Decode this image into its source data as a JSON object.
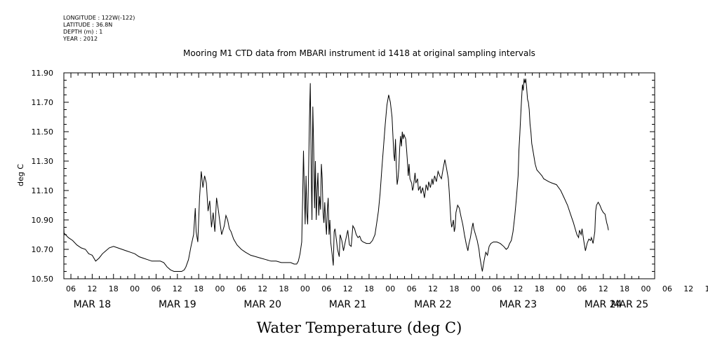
{
  "meta": {
    "longitude": "LONGITUDE : 122W(-122)",
    "latitude": "LATITUDE : 36.8N",
    "depth": "DEPTH (m) : 1",
    "year": "YEAR : 2012"
  },
  "chart_data": {
    "type": "line",
    "title": "Mooring M1 CTD data from MBARI instrument id 1418 at original sampling intervals",
    "xlabel": "Water Temperature (deg C)",
    "ylabel": "deg C",
    "ylim": [
      10.5,
      11.9
    ],
    "xlim": [
      0,
      7
    ],
    "x_unit": "days since 2012-03-18 00:00",
    "y_ticks": [
      10.5,
      10.7,
      10.9,
      11.1,
      11.3,
      11.5,
      11.7,
      11.9
    ],
    "y_tick_labels": [
      "10.50",
      "10.70",
      "10.90",
      "11.10",
      "11.30",
      "11.50",
      "11.70",
      "11.90"
    ],
    "x_hour_labels": [
      "06",
      "12",
      "18",
      "00",
      "06",
      "12",
      "18",
      "00",
      "06",
      "12",
      "18",
      "00",
      "06",
      "12",
      "18",
      "00",
      "06",
      "12",
      "18",
      "00",
      "06",
      "12",
      "18",
      "00",
      "06",
      "12",
      "18",
      "00",
      "06",
      "12",
      "18",
      "00"
    ],
    "x_month_labels": [
      "MAR 18",
      "MAR 19",
      "MAR 20",
      "MAR 21",
      "MAR 22",
      "MAR 23",
      "MAR 24",
      "MAR 25"
    ],
    "grid": false,
    "series": [
      {
        "name": "",
        "points": [
          [
            -0.1,
            11.2
          ],
          [
            -0.07,
            11.17
          ],
          [
            -0.05,
            11.1
          ],
          [
            -0.02,
            11.03
          ],
          [
            0.0,
            10.99
          ],
          [
            0.04,
            10.94
          ],
          [
            0.08,
            10.89
          ],
          [
            0.12,
            10.85
          ],
          [
            0.17,
            10.81
          ],
          [
            0.22,
            10.78
          ],
          [
            0.27,
            10.76
          ],
          [
            0.32,
            10.73
          ],
          [
            0.37,
            10.71
          ],
          [
            0.42,
            10.7
          ],
          [
            0.46,
            10.67
          ],
          [
            0.5,
            10.66
          ],
          [
            0.54,
            10.62
          ],
          [
            0.58,
            10.64
          ],
          [
            0.62,
            10.67
          ],
          [
            0.66,
            10.69
          ],
          [
            0.7,
            10.71
          ],
          [
            0.75,
            10.72
          ],
          [
            0.8,
            10.71
          ],
          [
            0.85,
            10.7
          ],
          [
            0.9,
            10.69
          ],
          [
            0.95,
            10.68
          ],
          [
            1.0,
            10.67
          ],
          [
            1.05,
            10.65
          ],
          [
            1.1,
            10.64
          ],
          [
            1.15,
            10.63
          ],
          [
            1.2,
            10.62
          ],
          [
            1.25,
            10.62
          ],
          [
            1.3,
            10.62
          ],
          [
            1.34,
            10.61
          ],
          [
            1.38,
            10.58
          ],
          [
            1.42,
            10.56
          ],
          [
            1.46,
            10.55
          ],
          [
            1.5,
            10.55
          ],
          [
            1.55,
            10.55
          ],
          [
            1.58,
            10.56
          ],
          [
            1.6,
            10.58
          ],
          [
            1.63,
            10.63
          ],
          [
            1.66,
            10.72
          ],
          [
            1.69,
            10.8
          ],
          [
            1.71,
            10.98
          ],
          [
            1.72,
            10.82
          ],
          [
            1.74,
            10.75
          ],
          [
            1.76,
            11.05
          ],
          [
            1.78,
            11.23
          ],
          [
            1.8,
            11.12
          ],
          [
            1.82,
            11.2
          ],
          [
            1.84,
            11.15
          ],
          [
            1.86,
            10.96
          ],
          [
            1.88,
            11.03
          ],
          [
            1.9,
            10.85
          ],
          [
            1.92,
            10.95
          ],
          [
            1.94,
            10.82
          ],
          [
            1.96,
            11.05
          ],
          [
            1.98,
            10.97
          ],
          [
            2.0,
            10.88
          ],
          [
            2.02,
            10.8
          ],
          [
            2.05,
            10.86
          ],
          [
            2.07,
            10.93
          ],
          [
            2.09,
            10.9
          ],
          [
            2.11,
            10.84
          ],
          [
            2.13,
            10.82
          ],
          [
            2.16,
            10.77
          ],
          [
            2.2,
            10.73
          ],
          [
            2.25,
            10.7
          ],
          [
            2.3,
            10.68
          ],
          [
            2.36,
            10.66
          ],
          [
            2.42,
            10.65
          ],
          [
            2.48,
            10.64
          ],
          [
            2.54,
            10.63
          ],
          [
            2.6,
            10.62
          ],
          [
            2.66,
            10.62
          ],
          [
            2.72,
            10.61
          ],
          [
            2.78,
            10.61
          ],
          [
            2.83,
            10.61
          ],
          [
            2.87,
            10.6
          ],
          [
            2.9,
            10.6
          ],
          [
            2.92,
            10.62
          ],
          [
            2.94,
            10.67
          ],
          [
            2.96,
            10.75
          ],
          [
            2.97,
            11.05
          ],
          [
            2.98,
            11.37
          ],
          [
            2.99,
            11.1
          ],
          [
            3.0,
            10.87
          ],
          [
            3.01,
            11.2
          ],
          [
            3.02,
            10.95
          ],
          [
            3.03,
            10.87
          ],
          [
            3.05,
            11.58
          ],
          [
            3.06,
            11.83
          ],
          [
            3.07,
            11.3
          ],
          [
            3.08,
            10.9
          ],
          [
            3.09,
            11.67
          ],
          [
            3.1,
            11.4
          ],
          [
            3.11,
            10.98
          ],
          [
            3.12,
            11.3
          ],
          [
            3.13,
            10.9
          ],
          [
            3.14,
            11.1
          ],
          [
            3.15,
            11.22
          ],
          [
            3.16,
            10.93
          ],
          [
            3.17,
            11.06
          ],
          [
            3.18,
            10.97
          ],
          [
            3.19,
            11.28
          ],
          [
            3.2,
            11.18
          ],
          [
            3.21,
            10.95
          ],
          [
            3.22,
            10.88
          ],
          [
            3.23,
            11.02
          ],
          [
            3.24,
            10.9
          ],
          [
            3.25,
            10.8
          ],
          [
            3.26,
            10.97
          ],
          [
            3.27,
            11.05
          ],
          [
            3.28,
            10.8
          ],
          [
            3.29,
            10.9
          ],
          [
            3.3,
            10.75
          ],
          [
            3.31,
            10.7
          ],
          [
            3.32,
            10.65
          ],
          [
            3.33,
            10.59
          ],
          [
            3.34,
            10.82
          ],
          [
            3.35,
            10.84
          ],
          [
            3.37,
            10.75
          ],
          [
            3.38,
            10.7
          ],
          [
            3.4,
            10.65
          ],
          [
            3.41,
            10.8
          ],
          [
            3.43,
            10.76
          ],
          [
            3.45,
            10.69
          ],
          [
            3.47,
            10.75
          ],
          [
            3.5,
            10.83
          ],
          [
            3.52,
            10.73
          ],
          [
            3.54,
            10.72
          ],
          [
            3.56,
            10.86
          ],
          [
            3.58,
            10.84
          ],
          [
            3.6,
            10.8
          ],
          [
            3.62,
            10.78
          ],
          [
            3.64,
            10.79
          ],
          [
            3.66,
            10.76
          ],
          [
            3.68,
            10.75
          ],
          [
            3.72,
            10.74
          ],
          [
            3.76,
            10.74
          ],
          [
            3.79,
            10.76
          ],
          [
            3.82,
            10.8
          ],
          [
            3.84,
            10.88
          ],
          [
            3.86,
            10.96
          ],
          [
            3.88,
            11.08
          ],
          [
            3.9,
            11.25
          ],
          [
            3.92,
            11.4
          ],
          [
            3.94,
            11.55
          ],
          [
            3.96,
            11.68
          ],
          [
            3.98,
            11.75
          ],
          [
            4.0,
            11.7
          ],
          [
            4.02,
            11.6
          ],
          [
            4.03,
            11.48
          ],
          [
            4.04,
            11.35
          ],
          [
            4.05,
            11.3
          ],
          [
            4.06,
            11.45
          ],
          [
            4.07,
            11.26
          ],
          [
            4.08,
            11.14
          ],
          [
            4.09,
            11.18
          ],
          [
            4.1,
            11.25
          ],
          [
            4.11,
            11.4
          ],
          [
            4.12,
            11.47
          ],
          [
            4.13,
            11.4
          ],
          [
            4.14,
            11.5
          ],
          [
            4.15,
            11.45
          ],
          [
            4.16,
            11.48
          ],
          [
            4.18,
            11.45
          ],
          [
            4.19,
            11.38
          ],
          [
            4.2,
            11.3
          ],
          [
            4.21,
            11.2
          ],
          [
            4.22,
            11.28
          ],
          [
            4.23,
            11.18
          ],
          [
            4.25,
            11.15
          ],
          [
            4.26,
            11.1
          ],
          [
            4.27,
            11.12
          ],
          [
            4.29,
            11.22
          ],
          [
            4.3,
            11.15
          ],
          [
            4.32,
            11.18
          ],
          [
            4.33,
            11.1
          ],
          [
            4.35,
            11.13
          ],
          [
            4.36,
            11.08
          ],
          [
            4.38,
            11.12
          ],
          [
            4.4,
            11.05
          ],
          [
            4.42,
            11.14
          ],
          [
            4.44,
            11.1
          ],
          [
            4.45,
            11.16
          ],
          [
            4.47,
            11.12
          ],
          [
            4.49,
            11.18
          ],
          [
            4.5,
            11.14
          ],
          [
            4.52,
            11.2
          ],
          [
            4.54,
            11.16
          ],
          [
            4.56,
            11.23
          ],
          [
            4.58,
            11.2
          ],
          [
            4.6,
            11.18
          ],
          [
            4.62,
            11.25
          ],
          [
            4.64,
            11.31
          ],
          [
            4.66,
            11.25
          ],
          [
            4.68,
            11.18
          ],
          [
            4.69,
            11.1
          ],
          [
            4.7,
            11.0
          ],
          [
            4.71,
            10.9
          ],
          [
            4.72,
            10.85
          ],
          [
            4.73,
            10.87
          ],
          [
            4.74,
            10.9
          ],
          [
            4.75,
            10.82
          ],
          [
            4.76,
            10.85
          ],
          [
            4.77,
            10.95
          ],
          [
            4.79,
            11.0
          ],
          [
            4.81,
            10.98
          ],
          [
            4.83,
            10.92
          ],
          [
            4.85,
            10.87
          ],
          [
            4.87,
            10.8
          ],
          [
            4.89,
            10.74
          ],
          [
            4.91,
            10.69
          ],
          [
            4.92,
            10.73
          ],
          [
            4.94,
            10.78
          ],
          [
            4.96,
            10.85
          ],
          [
            4.97,
            10.88
          ],
          [
            4.98,
            10.84
          ],
          [
            5.0,
            10.8
          ],
          [
            5.02,
            10.76
          ],
          [
            5.04,
            10.7
          ],
          [
            5.05,
            10.65
          ],
          [
            5.07,
            10.58
          ],
          [
            5.08,
            10.55
          ],
          [
            5.1,
            10.62
          ],
          [
            5.12,
            10.68
          ],
          [
            5.14,
            10.66
          ],
          [
            5.16,
            10.72
          ],
          [
            5.18,
            10.74
          ],
          [
            5.21,
            10.75
          ],
          [
            5.25,
            10.75
          ],
          [
            5.29,
            10.74
          ],
          [
            5.33,
            10.72
          ],
          [
            5.36,
            10.7
          ],
          [
            5.38,
            10.71
          ],
          [
            5.4,
            10.74
          ],
          [
            5.42,
            10.76
          ],
          [
            5.44,
            10.82
          ],
          [
            5.46,
            10.92
          ],
          [
            5.48,
            11.05
          ],
          [
            5.5,
            11.2
          ],
          [
            5.51,
            11.38
          ],
          [
            5.52,
            11.48
          ],
          [
            5.53,
            11.6
          ],
          [
            5.54,
            11.72
          ],
          [
            5.55,
            11.82
          ],
          [
            5.56,
            11.78
          ],
          [
            5.57,
            11.86
          ],
          [
            5.58,
            11.83
          ],
          [
            5.59,
            11.86
          ],
          [
            5.6,
            11.8
          ],
          [
            5.61,
            11.72
          ],
          [
            5.62,
            11.7
          ],
          [
            5.63,
            11.65
          ],
          [
            5.64,
            11.55
          ],
          [
            5.65,
            11.5
          ],
          [
            5.66,
            11.42
          ],
          [
            5.68,
            11.35
          ],
          [
            5.7,
            11.28
          ],
          [
            5.72,
            11.24
          ],
          [
            5.75,
            11.22
          ],
          [
            5.78,
            11.2
          ],
          [
            5.8,
            11.18
          ],
          [
            5.83,
            11.17
          ],
          [
            5.86,
            11.16
          ],
          [
            5.9,
            11.15
          ],
          [
            5.95,
            11.14
          ],
          [
            6.0,
            11.1
          ],
          [
            6.04,
            11.05
          ],
          [
            6.08,
            11.0
          ],
          [
            6.12,
            10.93
          ],
          [
            6.15,
            10.88
          ],
          [
            6.17,
            10.84
          ],
          [
            6.19,
            10.8
          ],
          [
            6.21,
            10.78
          ],
          [
            6.22,
            10.83
          ],
          [
            6.24,
            10.8
          ],
          [
            6.25,
            10.84
          ],
          [
            6.27,
            10.76
          ],
          [
            6.29,
            10.69
          ],
          [
            6.31,
            10.74
          ],
          [
            6.33,
            10.77
          ],
          [
            6.35,
            10.76
          ],
          [
            6.36,
            10.78
          ],
          [
            6.38,
            10.74
          ],
          [
            6.4,
            10.82
          ],
          [
            6.41,
            10.96
          ],
          [
            6.42,
            11.0
          ],
          [
            6.44,
            11.02
          ],
          [
            6.46,
            11.0
          ],
          [
            6.48,
            10.97
          ],
          [
            6.5,
            10.95
          ],
          [
            6.52,
            10.94
          ],
          [
            6.54,
            10.88
          ],
          [
            6.55,
            10.86
          ],
          [
            6.56,
            10.83
          ]
        ]
      }
    ]
  }
}
